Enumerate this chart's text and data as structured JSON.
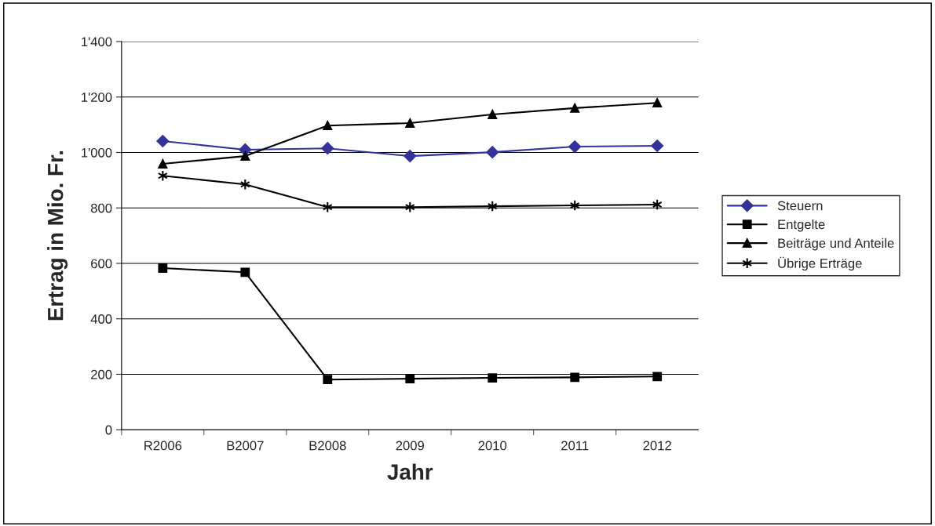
{
  "chart_data": {
    "type": "line",
    "xlabel": "Jahr",
    "ylabel": "Ertrag in Mio. Fr.",
    "categories": [
      "R2006",
      "B2007",
      "B2008",
      "2009",
      "2010",
      "2011",
      "2012"
    ],
    "series": [
      {
        "name": "Steuern",
        "color": "#333399",
        "marker": "diamond",
        "values": [
          1041,
          1010,
          1015,
          987,
          1001,
          1021,
          1024
        ]
      },
      {
        "name": "Entgelte",
        "color": "#000000",
        "marker": "square",
        "values": [
          583,
          568,
          181,
          184,
          187,
          189,
          192
        ]
      },
      {
        "name": "Beiträge und Anteile",
        "color": "#000000",
        "marker": "triangle",
        "values": [
          959,
          987,
          1097,
          1106,
          1137,
          1160,
          1179
        ]
      },
      {
        "name": "Übrige Erträge",
        "color": "#000000",
        "marker": "cross",
        "values": [
          916,
          885,
          803,
          803,
          806,
          809,
          812
        ]
      }
    ],
    "ylim": [
      0,
      1400
    ],
    "yticks": [
      0,
      200,
      400,
      600,
      800,
      {
        "value": 1000,
        "label": "1'000"
      },
      {
        "value": 1200,
        "label": "1'200"
      },
      {
        "value": 1400,
        "label": "1'400"
      }
    ],
    "grid": "y",
    "legend": "right"
  }
}
